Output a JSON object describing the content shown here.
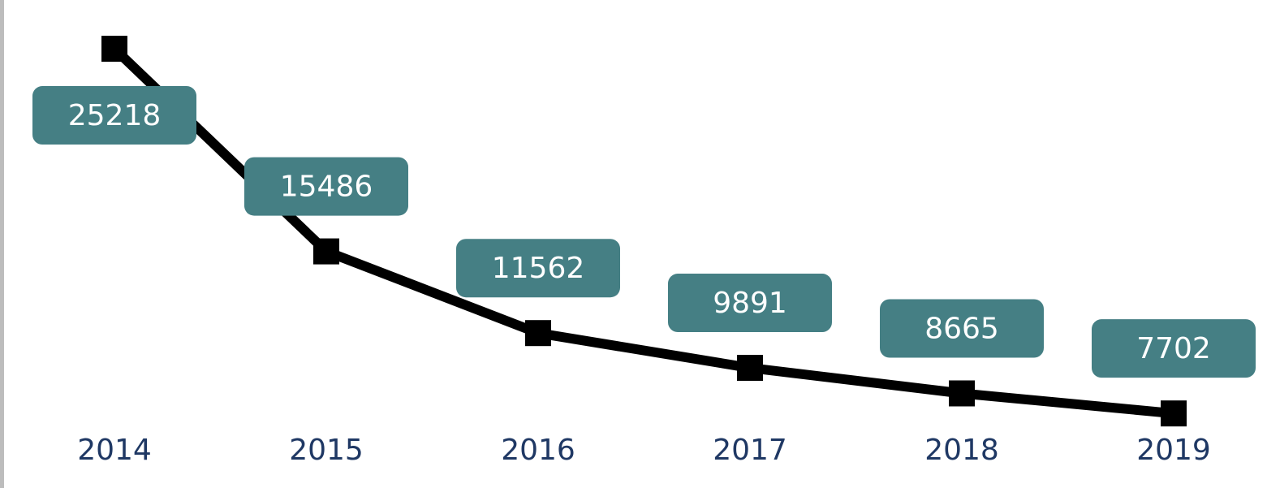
{
  "chart_data": {
    "type": "line",
    "categories": [
      "2014",
      "2015",
      "2016",
      "2017",
      "2018",
      "2019"
    ],
    "series": [
      {
        "color": "#000000",
        "values": [
          25218,
          15486,
          11562,
          9891,
          8665,
          7702
        ]
      }
    ],
    "label_color": "#457f84",
    "ylim": [
      6500,
      26000
    ]
  }
}
